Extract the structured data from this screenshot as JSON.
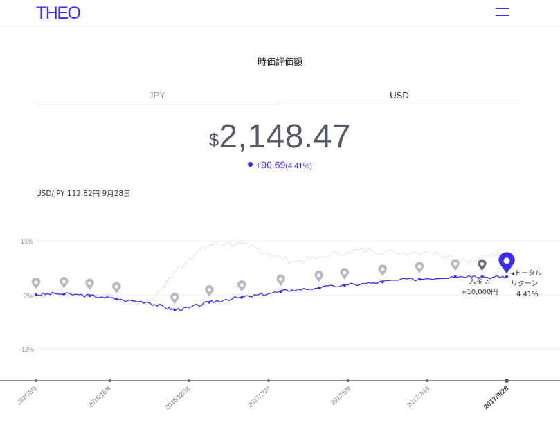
{
  "header": {
    "logo": "THEO",
    "menu_icon": "hamburger-icon"
  },
  "section_title": "時価評価額",
  "tabs": [
    {
      "label": "JPY",
      "active": false
    },
    {
      "label": "USD",
      "active": true
    }
  ],
  "valuation": {
    "currency_symbol": "$",
    "amount": "2,148.47",
    "change": "+90.69",
    "change_pct": "(4.41%)"
  },
  "fx_rate": "USD/JPY 112.82円 9月28日",
  "colors": {
    "accent": "#3a2cff",
    "benchmark": "#e3e6ee",
    "marker": "#9aa0aa"
  },
  "chart_data": {
    "type": "line",
    "y_ticks": [
      "13%",
      "0%",
      "-13%"
    ],
    "ylim": [
      -13,
      13
    ],
    "x_ticks": [
      "2016/8/3",
      "2016/10/8",
      "2016/12/18",
      "2017/2/27",
      "2017/5/9",
      "2017/7/19",
      "2017/9/28"
    ],
    "x": [
      "2016-08-03",
      "2016-08-20",
      "2016-09-10",
      "2016-10-01",
      "2016-10-20",
      "2016-11-10",
      "2016-11-25",
      "2016-12-05",
      "2016-12-18",
      "2017-01-05",
      "2017-01-20",
      "2017-02-10",
      "2017-02-27",
      "2017-03-20",
      "2017-04-10",
      "2017-05-09",
      "2017-05-30",
      "2017-06-20",
      "2017-07-19",
      "2017-08-10",
      "2017-08-30",
      "2017-09-15",
      "2017-09-28"
    ],
    "series": [
      {
        "values": [
          0.0,
          0.3,
          0.0,
          -0.5,
          -1.3,
          -1.7,
          -2.9,
          -3.6,
          -3.1,
          -1.8,
          -1.1,
          -0.4,
          0.3,
          1.2,
          1.6,
          2.4,
          2.8,
          3.5,
          3.9,
          4.4,
          4.6,
          4.2,
          4.41
        ]
      },
      {
        "values": [
          0.0,
          0.5,
          0.3,
          -0.3,
          -1.1,
          -2.2,
          2.0,
          5.5,
          8.8,
          12.0,
          12.5,
          11.6,
          10.0,
          8.0,
          8.8,
          10.5,
          10.8,
          10.2,
          10.5,
          9.2,
          8.0,
          9.8,
          10.5
        ]
      }
    ],
    "markers": [
      "2016-08-03",
      "2016-08-28",
      "2016-09-20",
      "2016-10-14",
      "2016-12-05",
      "2017-01-05",
      "2017-02-03",
      "2017-03-10",
      "2017-04-13",
      "2017-05-06",
      "2017-06-09",
      "2017-07-12",
      "2017-08-13",
      "2017-09-06",
      "2017-09-28"
    ],
    "annotations": [
      {
        "date": "2017-09-06",
        "lines": [
          "入金 ⛬",
          "+10,000円"
        ]
      },
      {
        "date": "2017-09-28",
        "lines": [
          "◂トータル",
          "リターン",
          "4.41%"
        ]
      }
    ]
  }
}
